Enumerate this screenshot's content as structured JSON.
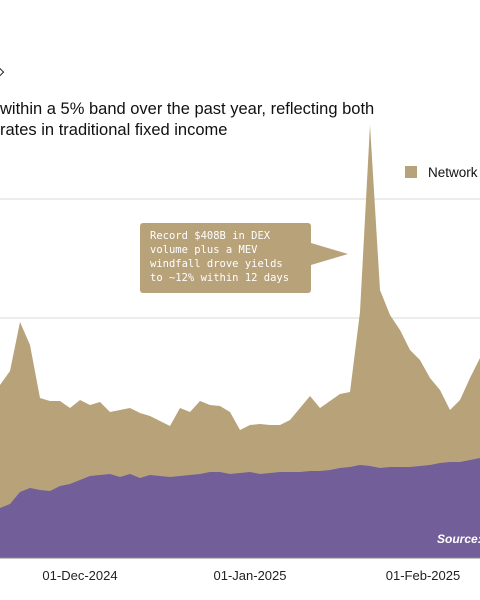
{
  "subtitle_lines": [
    "within a 5% band over the past year, reflecting both",
    "rates in traditional fixed income"
  ],
  "annotation": {
    "text": "Record $408B in DEX volume plus a MEV windfall drove yields to ~12% within 12 days"
  },
  "source_text": "Source:",
  "colors": {
    "tan": "#b8a27a",
    "purple": "#725e99",
    "grid": "#d9d9d9",
    "axis": "#888888"
  },
  "chart_data": {
    "type": "area",
    "title": "",
    "xlabel": "",
    "ylabel": "",
    "grid": true,
    "legend": {
      "placement": "top-right",
      "entries": [
        "Network"
      ]
    },
    "x_ticks": [
      "01-Dec-2024",
      "01-Jan-2025",
      "01-Feb-2025"
    ],
    "x": [
      "2024-11-08",
      "2024-11-10",
      "2024-11-12",
      "2024-11-14",
      "2024-11-16",
      "2024-11-18",
      "2024-11-20",
      "2024-11-22",
      "2024-11-24",
      "2024-11-26",
      "2024-11-28",
      "2024-11-30",
      "2024-12-02",
      "2024-12-04",
      "2024-12-06",
      "2024-12-08",
      "2024-12-10",
      "2024-12-12",
      "2024-12-14",
      "2024-12-16",
      "2024-12-18",
      "2024-12-20",
      "2024-12-22",
      "2024-12-24",
      "2024-12-26",
      "2024-12-28",
      "2024-12-30",
      "2025-01-01",
      "2025-01-03",
      "2025-01-05",
      "2025-01-07",
      "2025-01-09",
      "2025-01-11",
      "2025-01-13",
      "2025-01-15",
      "2025-01-17",
      "2025-01-19",
      "2025-01-21",
      "2025-01-23",
      "2025-01-25",
      "2025-01-27",
      "2025-01-29",
      "2025-01-31",
      "2025-02-02",
      "2025-02-04",
      "2025-02-06",
      "2025-02-08",
      "2025-02-10",
      "2025-02-12"
    ],
    "series": [
      {
        "name": "Network",
        "color": "#b8a27a",
        "values": [
          385,
          371,
          322,
          345,
          398,
          401,
          401,
          408,
          400,
          405,
          402,
          412,
          410,
          408,
          413,
          416,
          421,
          426,
          408,
          412,
          401,
          405,
          406,
          412,
          430,
          425,
          424,
          425,
          425,
          420,
          408,
          396,
          408,
          401,
          394,
          392,
          312,
          125,
          290,
          315,
          330,
          350,
          360,
          378,
          390,
          410,
          400,
          378,
          358
        ]
      },
      {
        "name": "",
        "color": "#725e99",
        "values": [
          508,
          504,
          492,
          488,
          490,
          491,
          486,
          484,
          480,
          476,
          475,
          474,
          477,
          474,
          478,
          475,
          476,
          477,
          476,
          475,
          474,
          472,
          472,
          474,
          473,
          472,
          474,
          473,
          472,
          472,
          472,
          471,
          471,
          470,
          468,
          467,
          465,
          466,
          468,
          467,
          467,
          467,
          466,
          465,
          463,
          462,
          462,
          460,
          458
        ]
      }
    ]
  }
}
